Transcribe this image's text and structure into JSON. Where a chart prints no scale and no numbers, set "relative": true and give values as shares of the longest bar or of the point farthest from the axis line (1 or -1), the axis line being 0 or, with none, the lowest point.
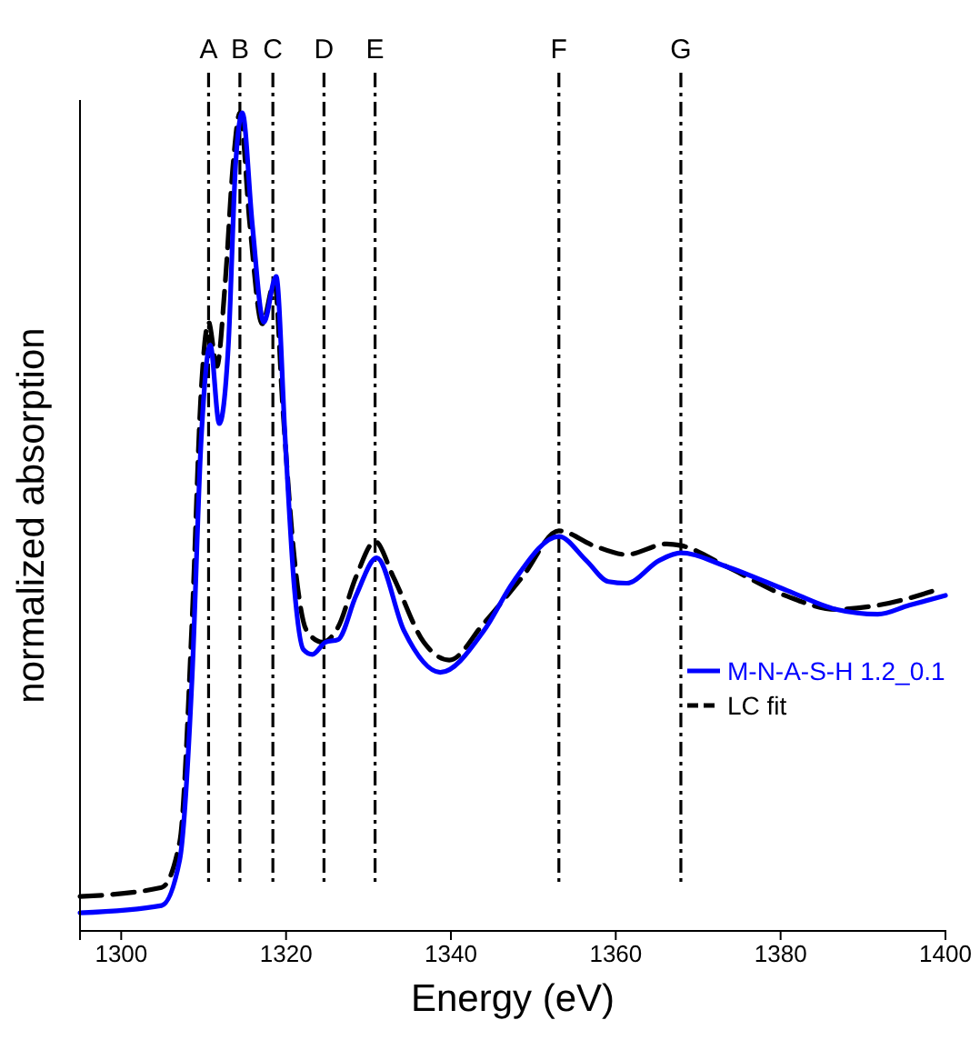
{
  "chart_data": {
    "type": "line",
    "relative": true,
    "xlabel": "Energy (eV)",
    "ylabel": "normalized absorption",
    "xlim": [
      1295,
      1400
    ],
    "xticks": [
      1300,
      1320,
      1340,
      1360,
      1380,
      1400
    ],
    "legend": "right",
    "tick_labels": "x",
    "series": [
      {
        "name": "M-N-A-S-H 1.2_0.1",
        "color": "#0000ff",
        "line_style": "solid",
        "x": [
          1295,
          1304.9,
          1307.1,
          1308.6,
          1309.7,
          1310.8,
          1311.9,
          1313,
          1313.9,
          1314.7,
          1315.9,
          1317.3,
          1318.8,
          1319.9,
          1321,
          1322.1,
          1323.2,
          1324.8,
          1326.3,
          1328.5,
          1331,
          1334.3,
          1338.7,
          1344,
          1347.6,
          1353.1,
          1356.4,
          1359.1,
          1361.3,
          1365.3,
          1367.9,
          1373.5,
          1380.8,
          1386.7,
          1391.8,
          1395.6,
          1400
        ],
        "values": [
          0.022,
          0.031,
          0.087,
          0.31,
          0.6,
          0.716,
          0.62,
          0.716,
          0.94,
          1,
          0.864,
          0.744,
          0.8,
          0.6,
          0.42,
          0.344,
          0.338,
          0.353,
          0.356,
          0.41,
          0.456,
          0.367,
          0.316,
          0.367,
          0.427,
          0.482,
          0.453,
          0.427,
          0.425,
          0.453,
          0.462,
          0.445,
          0.416,
          0.393,
          0.387,
          0.398,
          0.41
        ]
      },
      {
        "name": "LC fit",
        "color": "#000000",
        "line_style": "dashed",
        "x": [
          1295,
          1304.9,
          1307.1,
          1308.6,
          1309.7,
          1310.6,
          1311.6,
          1312.6,
          1313.6,
          1314.4,
          1315.6,
          1317.1,
          1318.6,
          1319.6,
          1321,
          1322.5,
          1324.4,
          1326.3,
          1328.5,
          1330.8,
          1333,
          1336.7,
          1339.8,
          1344,
          1348.7,
          1353.1,
          1357.3,
          1361.3,
          1366.2,
          1367.9,
          1373.5,
          1380.8,
          1386.7,
          1391.8,
          1399.3
        ],
        "values": [
          0.042,
          0.053,
          0.109,
          0.38,
          0.66,
          0.744,
          0.69,
          0.79,
          0.94,
          1,
          0.864,
          0.742,
          0.793,
          0.64,
          0.456,
          0.367,
          0.353,
          0.371,
          0.433,
          0.476,
          0.433,
          0.353,
          0.331,
          0.376,
          0.433,
          0.489,
          0.471,
          0.46,
          0.473,
          0.471,
          0.445,
          0.409,
          0.393,
          0.398,
          0.418
        ]
      }
    ],
    "ref_lines": [
      {
        "axis": "x",
        "value": 1310.6,
        "label": "A",
        "color": "#000000"
      },
      {
        "axis": "x",
        "value": 1314.4,
        "label": "B",
        "color": "#000000"
      },
      {
        "axis": "x",
        "value": 1318.4,
        "label": "C",
        "color": "#000000"
      },
      {
        "axis": "x",
        "value": 1324.6,
        "label": "D",
        "color": "#000000"
      },
      {
        "axis": "x",
        "value": 1330.8,
        "label": "E",
        "color": "#000000"
      },
      {
        "axis": "x",
        "value": 1353.1,
        "label": "F",
        "color": "#000000"
      },
      {
        "axis": "x",
        "value": 1367.9,
        "label": "G",
        "color": "#000000"
      }
    ]
  }
}
